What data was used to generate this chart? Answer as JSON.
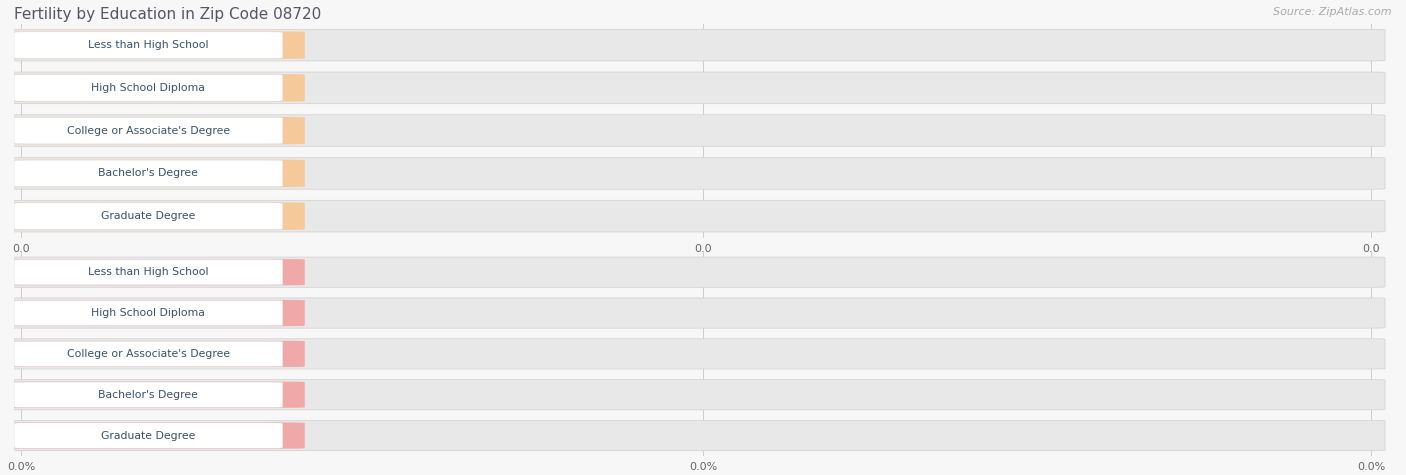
{
  "title": "Fertility by Education in Zip Code 08720",
  "source": "Source: ZipAtlas.com",
  "categories": [
    "Less than High School",
    "High School Diploma",
    "College or Associate's Degree",
    "Bachelor's Degree",
    "Graduate Degree"
  ],
  "top_values": [
    0.0,
    0.0,
    0.0,
    0.0,
    0.0
  ],
  "bottom_values": [
    0.0,
    0.0,
    0.0,
    0.0,
    0.0
  ],
  "top_bar_color": "#f5c99a",
  "top_bar_dark_color": "#f0b070",
  "top_label_text_color": "#3a5068",
  "top_value_text_color": "#ffffff",
  "bottom_bar_color": "#f0a8a8",
  "bottom_bar_dark_color": "#e07878",
  "bottom_label_text_color": "#3a5068",
  "bottom_value_text_color": "#ffffff",
  "row_bg_color": "#e8e8e8",
  "label_bg_color": "#ffffff",
  "top_tick_labels": [
    "0.0",
    "0.0",
    "0.0"
  ],
  "bottom_tick_labels": [
    "0.0%",
    "0.0%",
    "0.0%"
  ],
  "background_color": "#f7f7f7",
  "title_color": "#555566",
  "source_color": "#aaaaaa",
  "grid_color": "#cccccc",
  "top_value_suffix": "",
  "bottom_value_suffix": "%"
}
